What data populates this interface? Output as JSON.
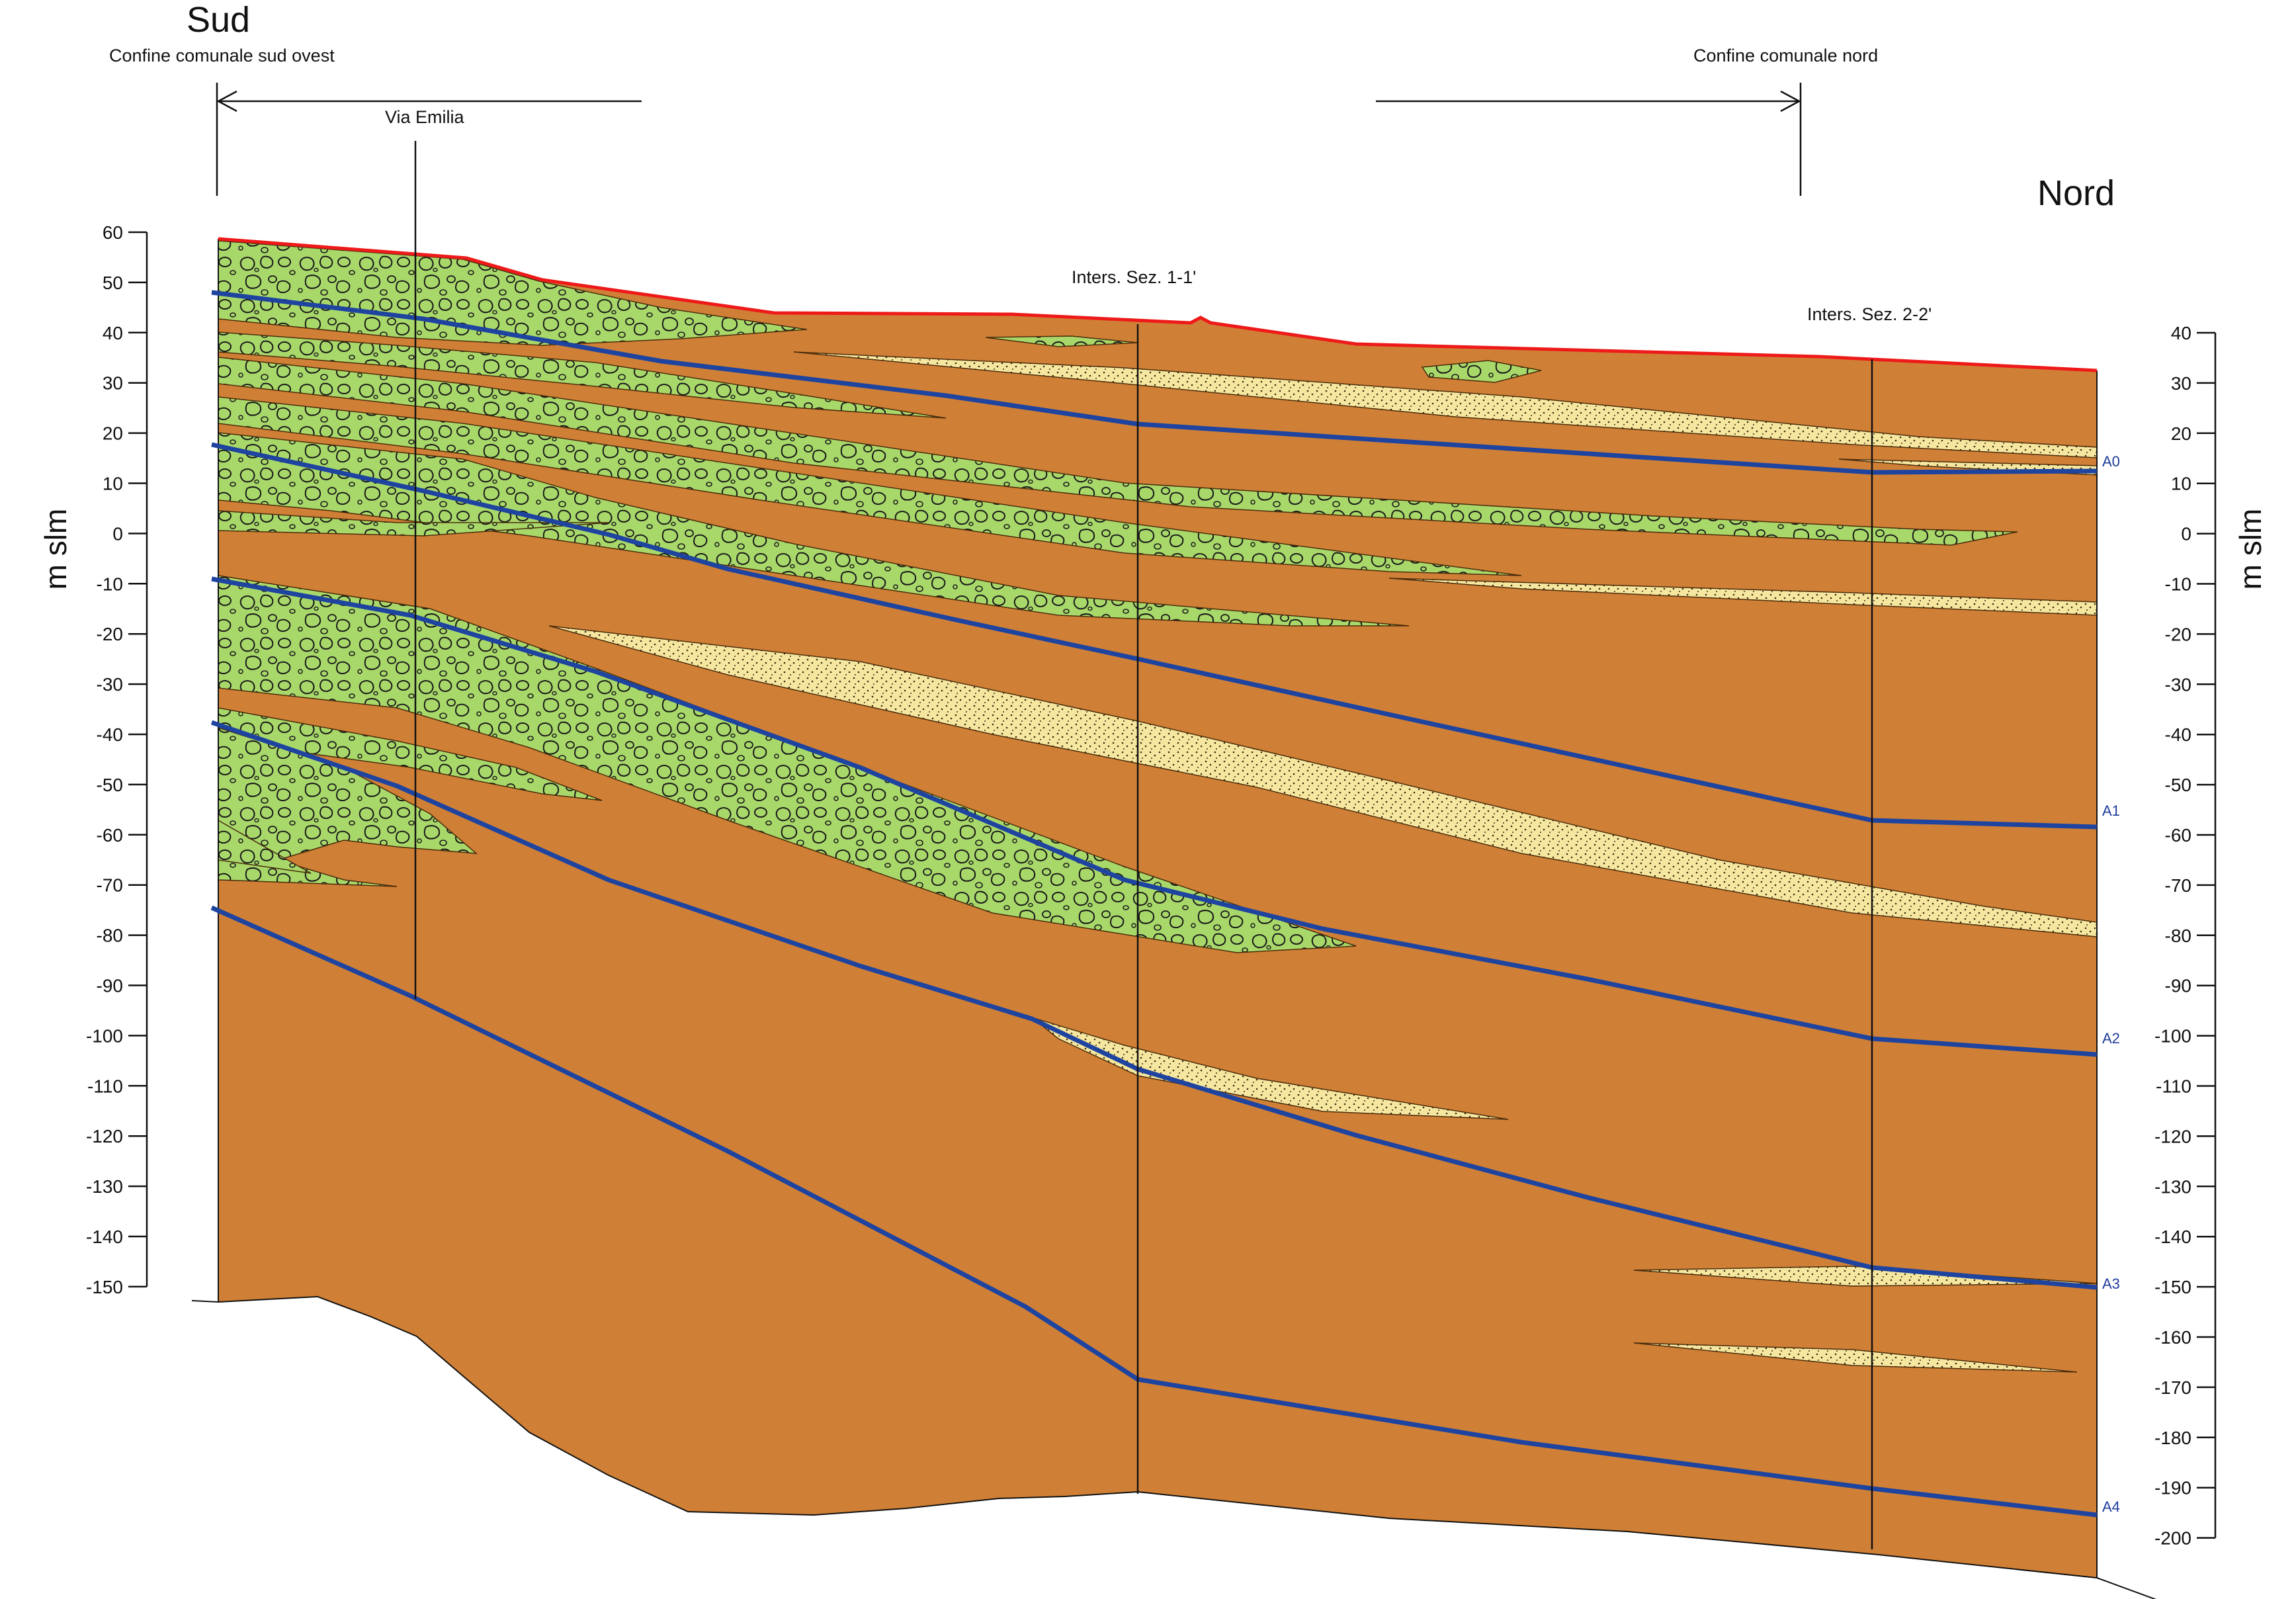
{
  "labels": {
    "south": "Sud",
    "north": "Nord",
    "south_boundary": "Confine comunale sud ovest",
    "north_boundary": "Confine comunale nord",
    "via_emilia": "Via Emilia",
    "inters_1": "Inters. Sez. 1-1'",
    "inters_2": "Inters. Sez. 2-2'"
  },
  "axes": {
    "left": {
      "title": "m slm",
      "ticks": [
        "60",
        "50",
        "40",
        "30",
        "20",
        "10",
        "0",
        "-10",
        "-20",
        "-30",
        "-40",
        "-50",
        "-60",
        "-70",
        "-80",
        "-90",
        "-100",
        "-110",
        "-120",
        "-130",
        "-140",
        "-150"
      ]
    },
    "right": {
      "title": "m slm",
      "ticks": [
        "40",
        "30",
        "20",
        "10",
        "0",
        "-10",
        "-20",
        "-30",
        "-40",
        "-50",
        "-60",
        "-70",
        "-80",
        "-90",
        "-100",
        "-110",
        "-120",
        "-130",
        "-140",
        "-150",
        "-160",
        "-170",
        "-180",
        "-190",
        "-200"
      ]
    }
  },
  "aquifer_boundaries": [
    "A0",
    "A1",
    "A2",
    "A3",
    "A4"
  ],
  "colors": {
    "clay": "#d08036",
    "gravel": "#a8d86a",
    "sand": "#f6e7a0",
    "boundary": "#1e44a0",
    "surface": "#ee1a1a"
  }
}
